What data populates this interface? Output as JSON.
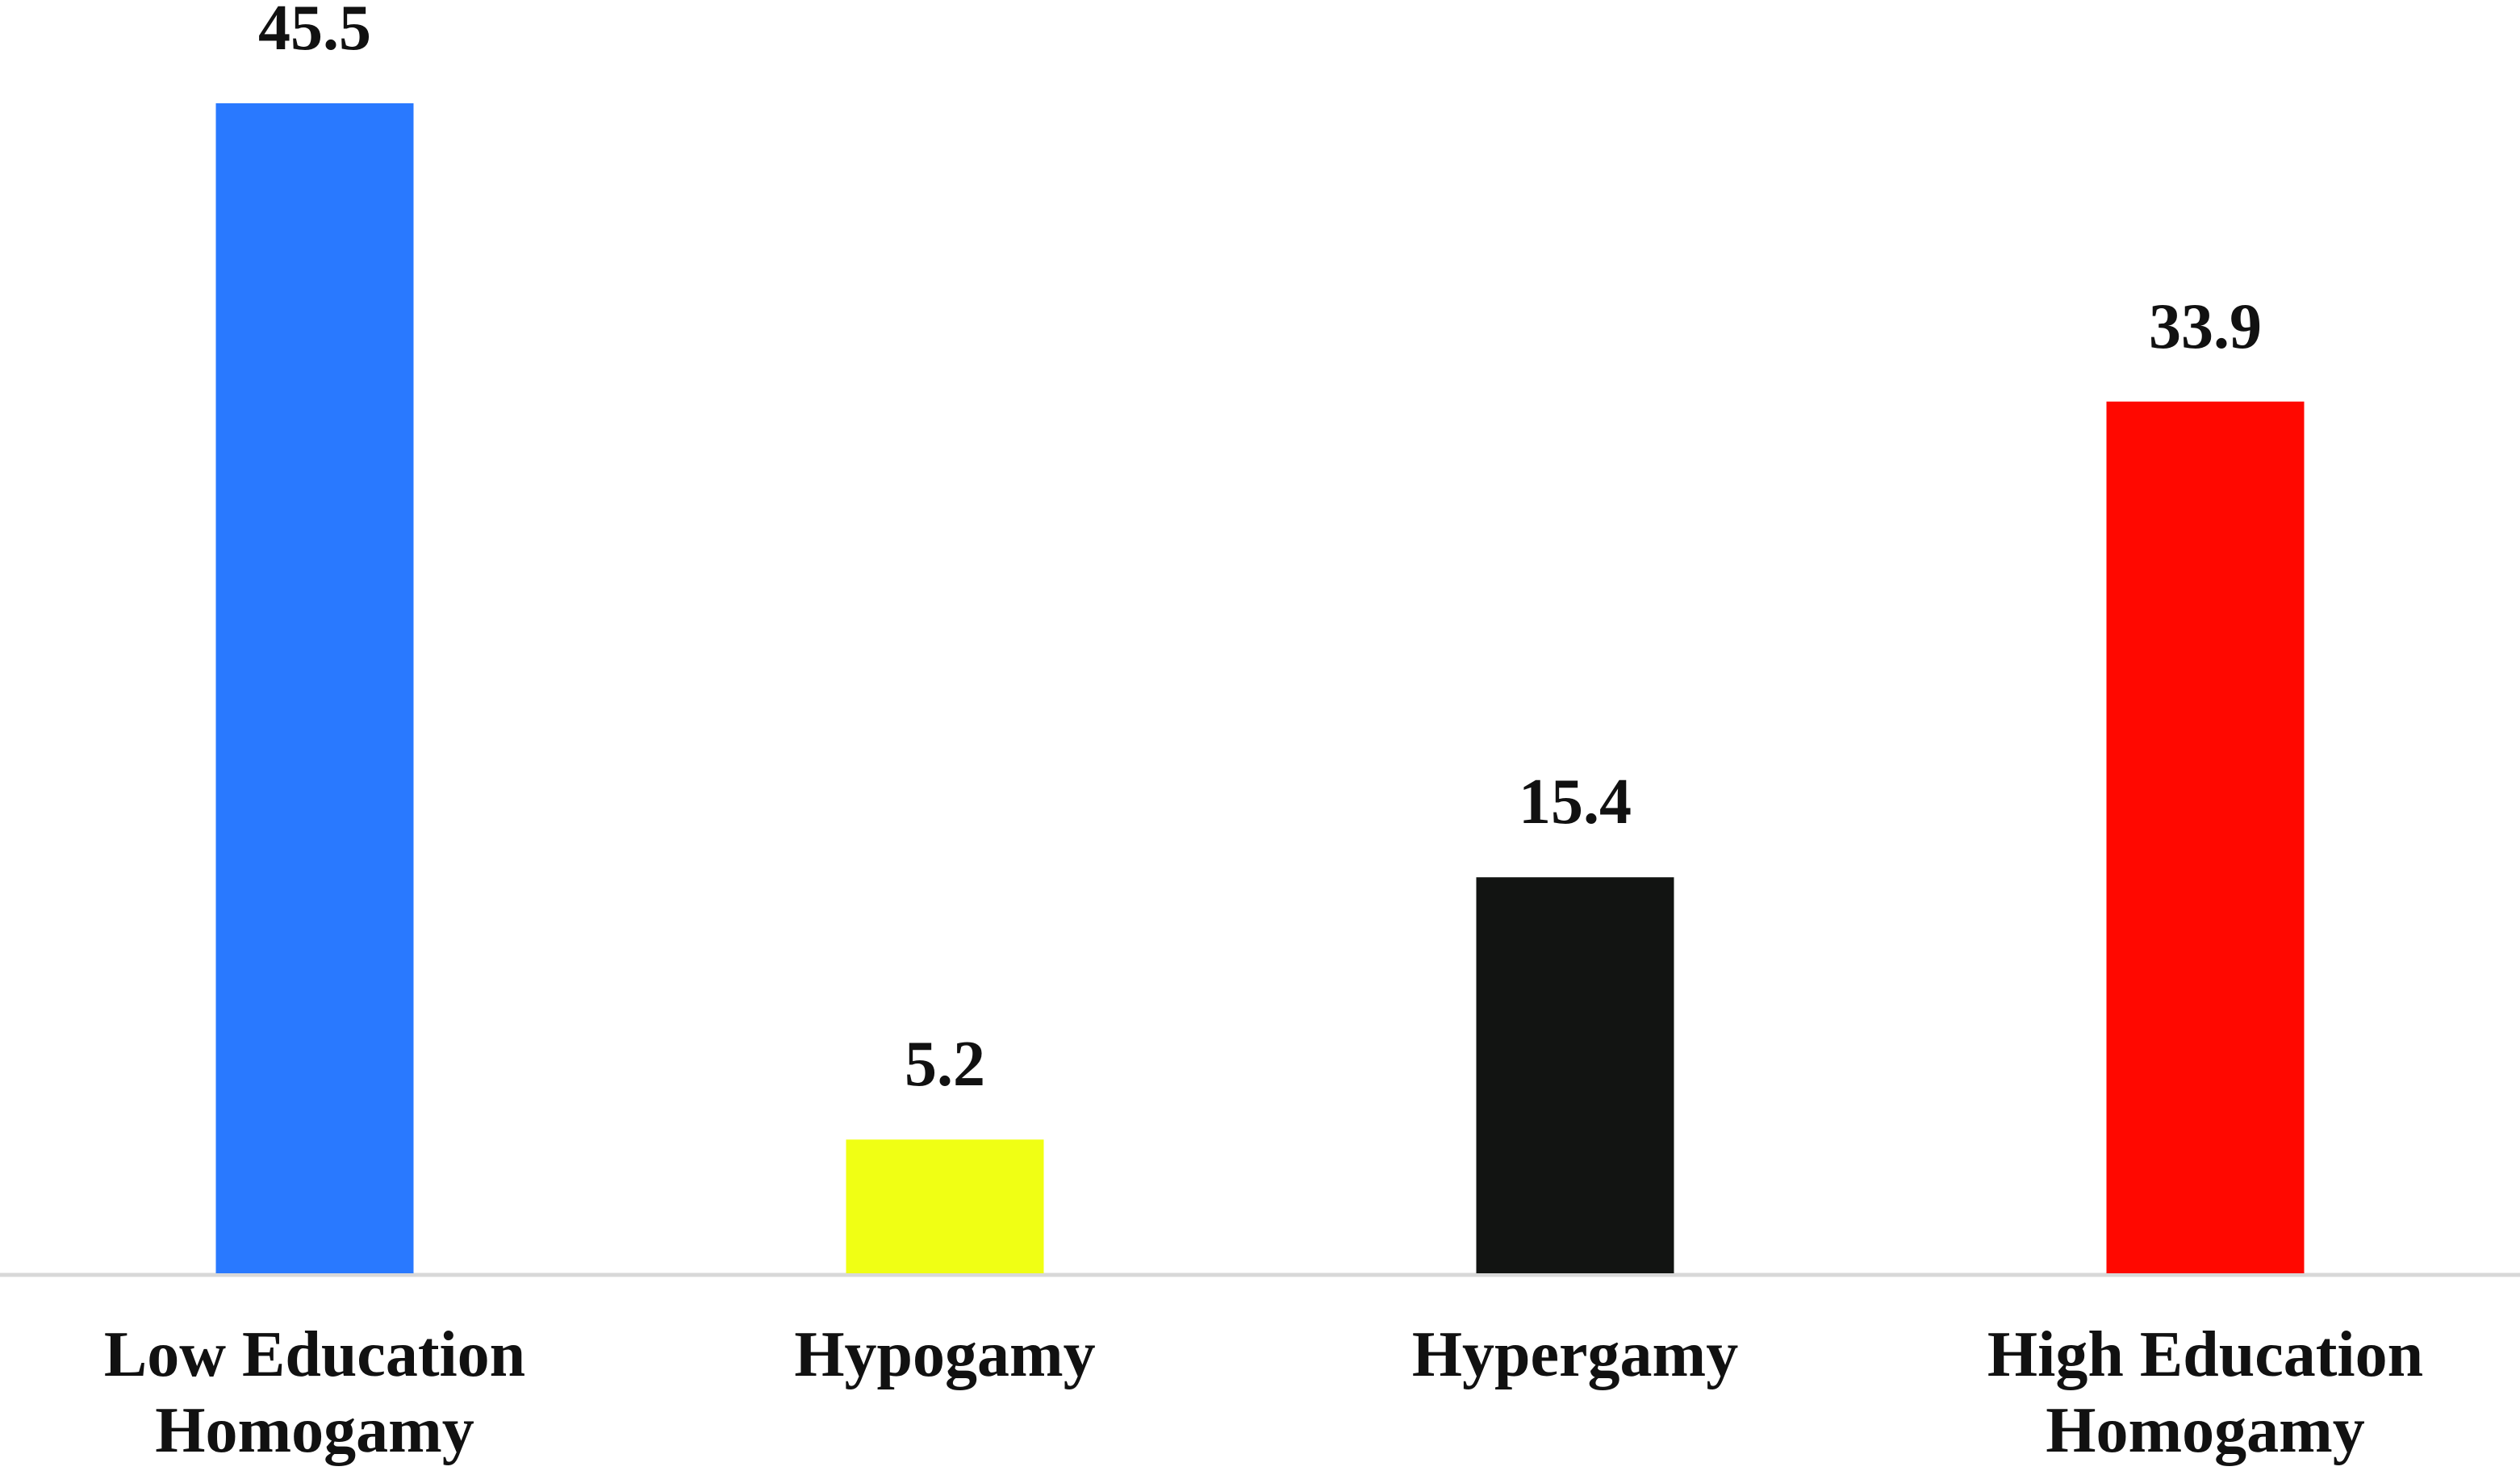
{
  "chart_data": {
    "type": "bar",
    "categories": [
      "Low Education Homogamy",
      "Hypogamy",
      "Hypergamy",
      "High Education Homogamy"
    ],
    "values": [
      45.5,
      5.2,
      15.4,
      33.9
    ],
    "colors": [
      "#2979ff",
      "#f0ff14",
      "#121412",
      "#ff0800"
    ]
  }
}
